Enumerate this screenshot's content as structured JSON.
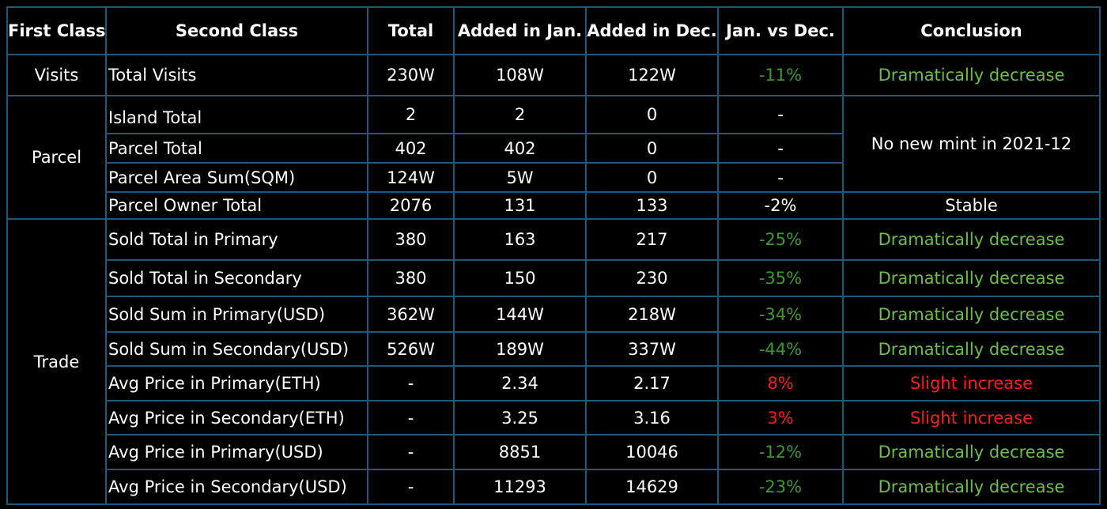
{
  "headers": [
    "First Class",
    "Second Class",
    "Total",
    "Added in Jan.",
    "Added in Dec.",
    "Jan. vs Dec.",
    "Conclusion"
  ],
  "groups": {
    "visits": "Visits",
    "parcel": "Parcel",
    "trade": "Trade"
  },
  "rows": [
    {
      "second": "Total Visits",
      "total": "230W",
      "jan": "108W",
      "dec": "122W",
      "diff": "-11%",
      "conclusion": "Dramatically decrease"
    },
    {
      "second": "Island Total",
      "total": "2",
      "jan": "2",
      "dec": "0",
      "diff": "-"
    },
    {
      "second": "Parcel Total",
      "total": "402",
      "jan": "402",
      "dec": "0",
      "diff": "-"
    },
    {
      "second": "Parcel Area Sum(SQM)",
      "total": "124W",
      "jan": "5W",
      "dec": "0",
      "diff": "-"
    },
    {
      "second": "Parcel Owner Total",
      "total": "2076",
      "jan": "131",
      "dec": "133",
      "diff": "-2%",
      "conclusion": "Stable"
    },
    {
      "second": "Sold Total in Primary",
      "total": "380",
      "jan": "163",
      "dec": "217",
      "diff": "-25%",
      "conclusion": "Dramatically decrease"
    },
    {
      "second": "Sold Total in Secondary",
      "total": "380",
      "jan": "150",
      "dec": "230",
      "diff": "-35%",
      "conclusion": "Dramatically decrease"
    },
    {
      "second": "Sold Sum in Primary(USD)",
      "total": "362W",
      "jan": "144W",
      "dec": "218W",
      "diff": "-34%",
      "conclusion": "Dramatically decrease"
    },
    {
      "second": "Sold Sum in Secondary(USD)",
      "total": "526W",
      "jan": "189W",
      "dec": "337W",
      "diff": "-44%",
      "conclusion": "Dramatically decrease"
    },
    {
      "second": "Avg Price in Primary(ETH)",
      "total": "-",
      "jan": "2.34",
      "dec": "2.17",
      "diff": "8%",
      "conclusion": "Slight increase"
    },
    {
      "second": "Avg Price in Secondary(ETH)",
      "total": "-",
      "jan": "3.25",
      "dec": "3.16",
      "diff": "3%",
      "conclusion": "Slight increase"
    },
    {
      "second": "Avg Price in Primary(USD)",
      "total": "-",
      "jan": "8851",
      "dec": "10046",
      "diff": "-12%",
      "conclusion": "Dramatically decrease"
    },
    {
      "second": "Avg Price in Secondary(USD)",
      "total": "-",
      "jan": "11293",
      "dec": "14629",
      "diff": "-23%",
      "conclusion": "Dramatically decrease"
    }
  ],
  "parcel_conclusion": "No new mint in 2021-12",
  "colors": {
    "background": "#000000",
    "border": "#1e5a78",
    "decrease_text": "#6bbf4a",
    "decrease_pct": "#3e9a2e",
    "increase": "#ff1a1a"
  }
}
